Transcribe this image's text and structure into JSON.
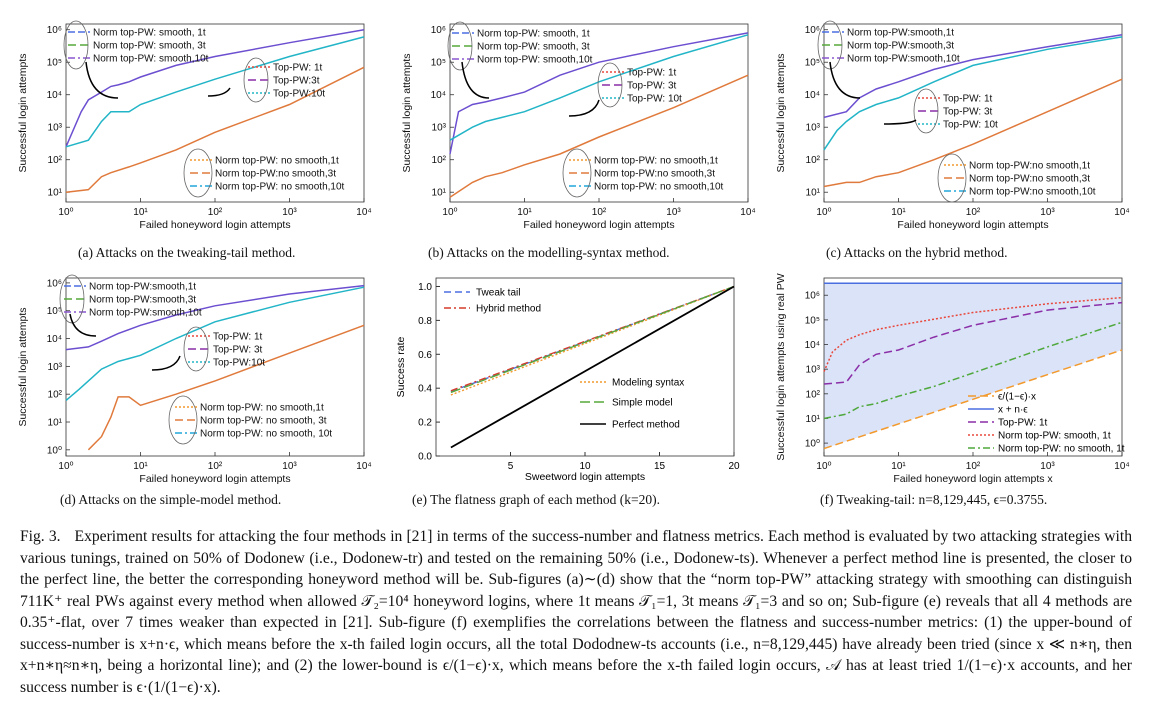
{
  "panels": [
    {
      "id": "a",
      "caption": "(a)  Attacks on the tweaking-tail method.",
      "chart_data": {
        "type": "line",
        "xlabel": "Failed honeyword login attempts",
        "ylabel": "Successful login attempts",
        "xscale": "log",
        "yscale": "log",
        "xlim": [
          1,
          10000
        ],
        "ylim": [
          5,
          1500000
        ],
        "xticks": [
          "10⁰",
          "10¹",
          "10²",
          "10³",
          "10⁴"
        ],
        "yticks": [
          "10¹",
          "10²",
          "10³",
          "10⁴",
          "10⁵",
          "10⁶"
        ],
        "legend_smooth": [
          "Norm top-PW: smooth, 1t",
          "Norm top-PW: smooth, 3t",
          "Norm top-PW: smooth,10t"
        ],
        "legend_top": [
          "Top-PW: 1t",
          "Top-PW:3t",
          "Top-PW:10t"
        ],
        "legend_nosmooth": [
          "Norm top-PW: no smooth,1t",
          "Norm top-PW:no smooth,3t",
          "Norm top-PW: no smooth,10t"
        ],
        "series": [
          {
            "group": "smooth",
            "color": "#6c4fd0",
            "x": [
              1,
              1.6,
              2,
              3,
              4,
              5,
              7,
              10,
              30,
              100,
              1000,
              10000
            ],
            "y": [
              250,
              3000,
              7000,
              12000,
              18000,
              20000,
              25000,
              35000,
              80000,
              150000,
              400000,
              1000000
            ]
          },
          {
            "group": "top",
            "color": "#22b5c7",
            "x": [
              1,
              2,
              3,
              4,
              7,
              10,
              30,
              100,
              1000,
              10000
            ],
            "y": [
              250,
              400,
              1500,
              3000,
              3000,
              5000,
              12000,
              30000,
              150000,
              600000
            ]
          },
          {
            "group": "nosmooth",
            "color": "#e07a3c",
            "x": [
              1,
              2,
              3,
              4,
              7,
              10,
              30,
              100,
              1000,
              10000
            ],
            "y": [
              10,
              12,
              30,
              40,
              60,
              80,
              200,
              700,
              5000,
              70000
            ]
          }
        ]
      }
    },
    {
      "id": "b",
      "caption": "(b)  Attacks on the modelling-syntax method.",
      "chart_data": {
        "type": "line",
        "xlabel": "Failed honeyword login attempts",
        "ylabel": "Successful login attempts",
        "xscale": "log",
        "yscale": "log",
        "xlim": [
          1,
          10000
        ],
        "ylim": [
          5,
          1500000
        ],
        "xticks": [
          "10⁰",
          "10¹",
          "10²",
          "10³",
          "10⁴"
        ],
        "yticks": [
          "10¹",
          "10²",
          "10³",
          "10⁴",
          "10⁵",
          "10⁶"
        ],
        "legend_smooth": [
          "Norm top-PW: smooth, 1t",
          "Norm top-PW: smooth, 3t",
          "Norm top-PW: smooth,10t"
        ],
        "legend_top": [
          "Top-PW: 1t",
          "Top-PW: 3t",
          "Top-PW: 10t"
        ],
        "legend_nosmooth": [
          "Norm top-PW: no smooth,1t",
          "Norm top-PW:no smooth,3t",
          "Norm top-PW: no smooth,10t"
        ],
        "series": [
          {
            "group": "smooth",
            "color": "#6c4fd0",
            "x": [
              1,
              1.3,
              2,
              3,
              5,
              10,
              30,
              100,
              1000,
              10000
            ],
            "y": [
              150,
              3000,
              5000,
              6000,
              8000,
              12000,
              40000,
              100000,
              300000,
              800000
            ]
          },
          {
            "group": "top",
            "color": "#22b5c7",
            "x": [
              1,
              2,
              3,
              5,
              10,
              30,
              100,
              1000,
              10000
            ],
            "y": [
              400,
              1000,
              1500,
              2000,
              3000,
              8000,
              25000,
              150000,
              700000
            ]
          },
          {
            "group": "nosmooth",
            "color": "#e07a3c",
            "x": [
              1,
              2,
              3,
              5,
              10,
              30,
              100,
              1000,
              10000
            ],
            "y": [
              7,
              20,
              30,
              40,
              70,
              150,
              500,
              4000,
              40000
            ]
          }
        ]
      }
    },
    {
      "id": "c",
      "caption": "(c)  Attacks on the hybrid method.",
      "chart_data": {
        "type": "line",
        "xlabel": "Failed honeyword login attempts",
        "ylabel": "Successful login attempts",
        "xscale": "log",
        "yscale": "log",
        "xlim": [
          1,
          10000
        ],
        "ylim": [
          5,
          1500000
        ],
        "xticks": [
          "10⁰",
          "10¹",
          "10²",
          "10³",
          "10⁴"
        ],
        "yticks": [
          "10¹",
          "10²",
          "10³",
          "10⁴",
          "10⁵",
          "10⁶"
        ],
        "legend_smooth": [
          "Norm top-PW:smooth,1t",
          "Norm top-PW:smooth,3t",
          "Norm top-PW:smooth,10t"
        ],
        "legend_top": [
          "Top-PW: 1t",
          "Top-PW: 3t",
          "Top-PW: 10t"
        ],
        "legend_nosmooth": [
          "Norm top-PW:no smooth,1t",
          "Norm top-PW:no smooth,3t",
          "Norm top-PW:no smooth,10t"
        ],
        "series": [
          {
            "group": "smooth",
            "color": "#6c4fd0",
            "x": [
              1,
              2,
              3,
              5,
              10,
              30,
              100,
              1000,
              10000
            ],
            "y": [
              2000,
              3000,
              8000,
              15000,
              25000,
              60000,
              120000,
              300000,
              700000
            ]
          },
          {
            "group": "top",
            "color": "#22b5c7",
            "x": [
              1,
              1.5,
              2,
              3,
              5,
              10,
              30,
              100,
              1000,
              10000
            ],
            "y": [
              200,
              800,
              1500,
              3000,
              5000,
              8000,
              25000,
              80000,
              250000,
              600000
            ]
          },
          {
            "group": "nosmooth",
            "color": "#e07a3c",
            "x": [
              1,
              2,
              3,
              5,
              10,
              30,
              100,
              1000,
              10000
            ],
            "y": [
              15,
              20,
              20,
              30,
              40,
              100,
              300,
              3000,
              30000
            ]
          }
        ]
      }
    },
    {
      "id": "d",
      "caption": "(d)  Attacks on the simple-model method.",
      "chart_data": {
        "type": "line",
        "xlabel": "Failed honeyword login attempts",
        "ylabel": "Successful login attempts",
        "xscale": "log",
        "yscale": "log",
        "xlim": [
          1,
          10000
        ],
        "ylim": [
          0.6,
          1500000
        ],
        "xticks": [
          "10⁰",
          "10¹",
          "10²",
          "10³",
          "10⁴"
        ],
        "yticks": [
          "10⁰",
          "10¹",
          "10²",
          "10³",
          "10⁴",
          "10⁵",
          "10⁶"
        ],
        "legend_smooth": [
          "Norm top-PW:smooth,1t",
          "Norm top-PW:smooth,3t",
          "Norm top-PW:smooth,10t"
        ],
        "legend_top": [
          "Top-PW: 1t",
          "Top-PW: 3t",
          "Top-PW:10t"
        ],
        "legend_nosmooth": [
          "Norm top-PW: no smooth,1t",
          "Norm top-PW: no smooth, 3t",
          "Norm top-PW: no smooth, 10t"
        ],
        "series": [
          {
            "group": "smooth",
            "color": "#6c4fd0",
            "x": [
              1,
              2,
              3,
              5,
              10,
              30,
              100,
              1000,
              10000
            ],
            "y": [
              4000,
              5000,
              8000,
              15000,
              30000,
              70000,
              150000,
              400000,
              800000
            ]
          },
          {
            "group": "top",
            "color": "#22b5c7",
            "x": [
              1,
              1.5,
              2,
              3,
              5,
              10,
              30,
              100,
              1000,
              10000
            ],
            "y": [
              60,
              150,
              300,
              800,
              1500,
              2500,
              10000,
              40000,
              200000,
              700000
            ]
          },
          {
            "group": "nosmooth",
            "color": "#e07a3c",
            "x": [
              2,
              3,
              4,
              5,
              7,
              10,
              30,
              100,
              1000,
              10000
            ],
            "y": [
              1,
              3,
              15,
              80,
              80,
              40,
              100,
              300,
              3000,
              30000
            ]
          }
        ]
      }
    },
    {
      "id": "e",
      "caption": "(e)  The flatness graph of each method (k=20).",
      "chart_data": {
        "type": "line",
        "xlabel": "Sweetword login attempts",
        "ylabel": "Success rate",
        "xlim": [
          0,
          20
        ],
        "ylim": [
          0,
          1.05
        ],
        "xticks": [
          5,
          10,
          15,
          20
        ],
        "yticks": [
          0.0,
          0.2,
          0.4,
          0.6,
          0.8,
          1.0
        ],
        "series": [
          {
            "name": "Tweak tail",
            "color": "#4a6ee0",
            "dash": "7,4",
            "x": [
              1,
              20
            ],
            "y": [
              0.38,
              1.0
            ]
          },
          {
            "name": "Hybrid method",
            "color": "#d63b2c",
            "dash": "7,3,2,3",
            "x": [
              1,
              20
            ],
            "y": [
              0.385,
              1.0
            ]
          },
          {
            "name": "Modeling syntax",
            "color": "#f29a2e",
            "dash": "2,2",
            "x": [
              1,
              20
            ],
            "y": [
              0.36,
              1.0
            ]
          },
          {
            "name": "Simple model",
            "color": "#57a83c",
            "dash": "10,4",
            "x": [
              1,
              20
            ],
            "y": [
              0.375,
              1.0
            ]
          },
          {
            "name": "Perfect method",
            "color": "#000000",
            "dash": "",
            "x": [
              1,
              20
            ],
            "y": [
              0.05,
              1.0
            ]
          }
        ]
      }
    },
    {
      "id": "f",
      "caption": "(f)  Tweaking-tail: n=8,129,445, ϵ=0.3755.",
      "chart_data": {
        "type": "line",
        "xlabel": "Failed honeyword login attempts  x",
        "ylabel": "Successful login attempts using real PW",
        "xscale": "log",
        "yscale": "log",
        "xlim": [
          1,
          10000
        ],
        "ylim": [
          0.3,
          5000000
        ],
        "xticks": [
          "10⁰",
          "10¹",
          "10²",
          "10³",
          "10⁴"
        ],
        "yticks": [
          "10⁰",
          "10¹",
          "10²",
          "10³",
          "10⁴",
          "10⁵",
          "10⁶"
        ],
        "series": [
          {
            "name": "ϵ/(1−ϵ)·x",
            "color": "#f29a2e",
            "dash": "8,4",
            "x": [
              1,
              10000
            ],
            "y": [
              0.6,
              6000
            ]
          },
          {
            "name": "x + n·ϵ",
            "color": "#4a6ee0",
            "dash": "",
            "x": [
              1,
              10000
            ],
            "y": [
              3050000,
              3050000
            ]
          },
          {
            "name": "Top-PW: 1t",
            "color": "#8a2fa8",
            "dash": "8,4",
            "x": [
              1,
              2,
              3,
              5,
              10,
              30,
              100,
              1000,
              10000
            ],
            "y": [
              250,
              300,
              1500,
              4000,
              6000,
              20000,
              60000,
              250000,
              500000
            ]
          },
          {
            "name": "Norm top-PW: smooth, 1t",
            "color": "#e8483c",
            "dash": "2,2",
            "x": [
              1,
              1.3,
              2,
              3,
              5,
              10,
              100,
              1000,
              10000
            ],
            "y": [
              800,
              5000,
              15000,
              25000,
              40000,
              60000,
              200000,
              450000,
              800000
            ]
          },
          {
            "name": "Norm top-PW: no smooth, 1t",
            "color": "#4ea83c",
            "dash": "7,3,2,3",
            "x": [
              1,
              2,
              3,
              5,
              10,
              30,
              100,
              1000,
              10000
            ],
            "y": [
              10,
              15,
              30,
              40,
              80,
              200,
              700,
              8000,
              80000
            ]
          }
        ],
        "shaded_region": "between lower-bound and upper-bound"
      }
    }
  ],
  "figure_caption": {
    "label": "Fig. 3.",
    "text": "Experiment results for attacking the four methods in [21] in terms of the success-number and flatness metrics. Each method is evaluated by two attacking strategies with various tunings, trained on 50% of Dodonew (i.e., Dodonew-tr) and tested on the remaining 50% (i.e., Dodonew-ts). Whenever a perfect method line is presented, the closer to the perfect line, the better the corresponding honeyword method will be. Sub-figures (a)∼(d) show that the “norm top-PW” attacking strategy with smoothing can distinguish 711K⁺ real PWs against every method when allowed 𝒯₂=10⁴ honeyword logins, where 1t means 𝒯₁=1, 3t means 𝒯₁=3 and so on; Sub-figure (e) reveals that all 4 methods are 0.35⁺-flat, over 7 times weaker than expected in [21]. Sub-figure (f) exemplifies the correlations between the flatness and success-number metrics: (1) the upper-bound of success-number is x+n·ϵ, which means before the x-th failed login occurs, all the total Dododnew-ts accounts (i.e., n=8,129,445) have already been tried (since x ≪ n∗η, then x+n∗η≈n∗η, being a horizontal line); and (2) the lower-bound is ϵ/(1−ϵ)·x, which means before the x-th failed login occurs, 𝒜 has at least tried 1/(1−ϵ)·x accounts, and her success number is ϵ·(1/(1−ϵ)·x)."
  }
}
